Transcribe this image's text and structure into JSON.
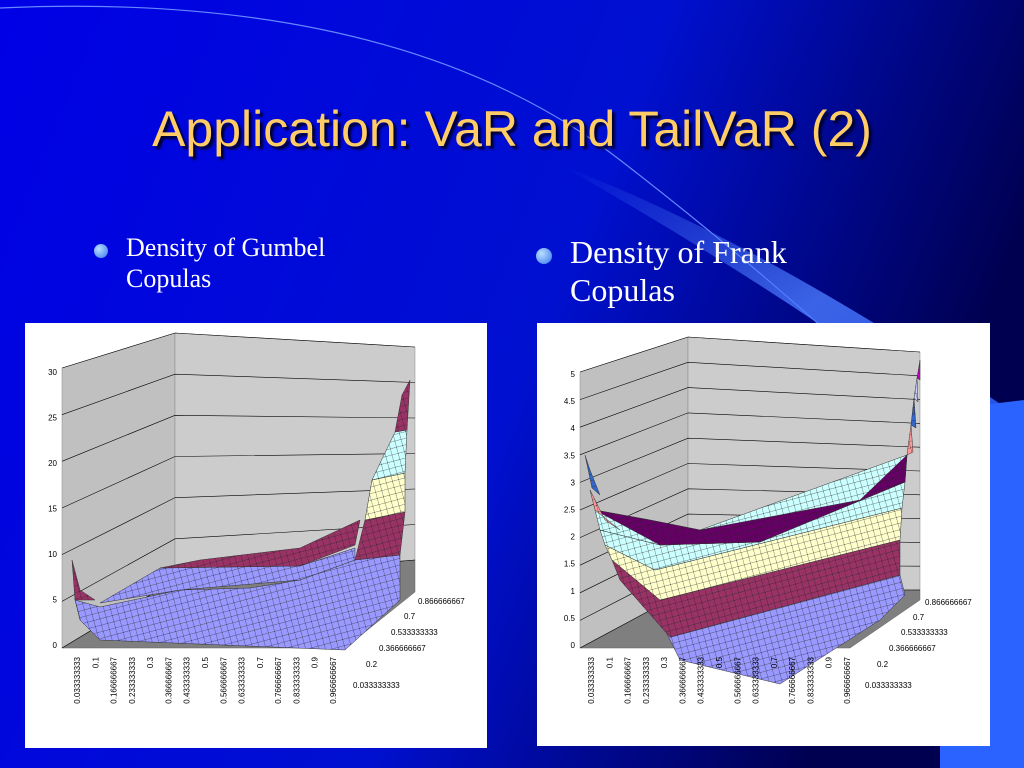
{
  "title": "Application: VaR and TailVaR (2)",
  "bullets": [
    "Density of Gumbel Copulas",
    "Density of Frank Copulas"
  ],
  "charts": [
    {
      "y_labels": [
        "0",
        "5",
        "10",
        "15",
        "20",
        "25",
        "30"
      ],
      "x_labels": [
        "0.033333333",
        "0.1",
        "0.166666667",
        "0.233333333",
        "0.3",
        "0.366666667",
        "0.433333333",
        "0.5",
        "0.566666667",
        "0.633333333",
        "0.7",
        "0.766666667",
        "0.833333333",
        "0.9",
        "0.966666667"
      ],
      "depth_labels": [
        "0.866666667",
        "0.7",
        "0.533333333",
        "0.366666667",
        "0.2",
        "0.033333333"
      ]
    },
    {
      "y_labels": [
        "0",
        "0.5",
        "1",
        "1.5",
        "2",
        "2.5",
        "3",
        "3.5",
        "4",
        "4.5",
        "5"
      ],
      "x_labels": [
        "0.033333333",
        "0.1",
        "0.166666667",
        "0.233333333",
        "0.3",
        "0.366666667",
        "0.433333333",
        "0.5",
        "0.566666667",
        "0.633333333",
        "0.7",
        "0.766666667",
        "0.833333333",
        "0.9",
        "0.966666667"
      ],
      "depth_labels": [
        "0.866666667",
        "0.7",
        "0.533333333",
        "0.366666667",
        "0.2",
        "0.033333333"
      ]
    }
  ]
}
